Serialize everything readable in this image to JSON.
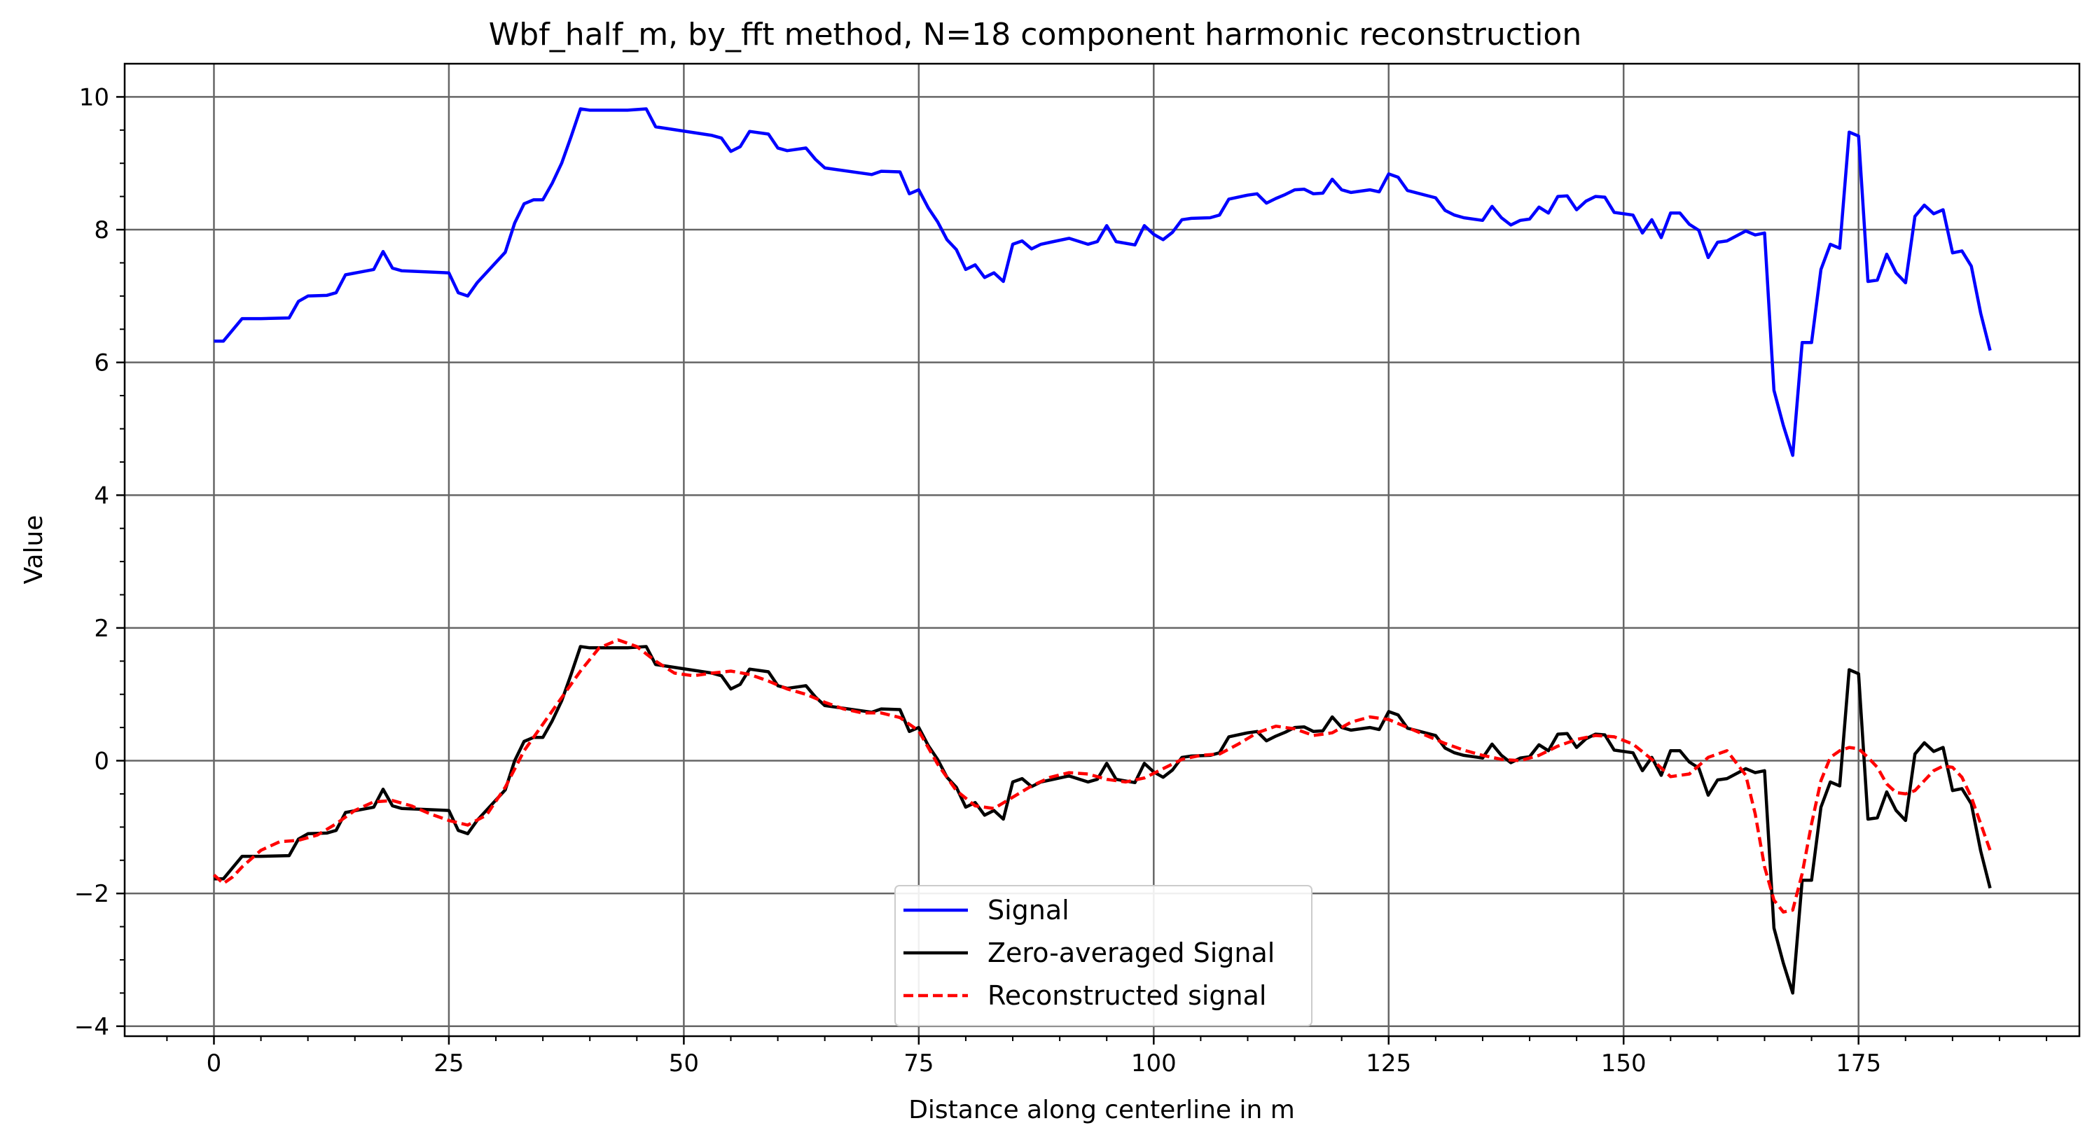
{
  "chart_data": {
    "type": "line",
    "title": "Wbf_half_m, by_fft method, N=18 component harmonic reconstruction",
    "xlabel": "Distance along centerline in m",
    "ylabel": "Value",
    "xlim": [
      -9.5,
      198.5
    ],
    "ylim": [
      -4.15,
      10.5
    ],
    "xticks": [
      0,
      25,
      50,
      75,
      100,
      125,
      150,
      175
    ],
    "yticks": [
      -4,
      -2,
      0,
      2,
      4,
      6,
      8,
      10
    ],
    "grid": true,
    "legend_position": "bottom-center",
    "series": [
      {
        "name": "Signal",
        "color": "#0000ff",
        "dash": "solid",
        "x": [
          0,
          1,
          3,
          5,
          8,
          9,
          10,
          12,
          13,
          14,
          17,
          18,
          19,
          20,
          25,
          26,
          27,
          28,
          31,
          32,
          33,
          34,
          35,
          36,
          37,
          38,
          39,
          40,
          42,
          44,
          46,
          47,
          53,
          54,
          55,
          56,
          57,
          59,
          60,
          61,
          63,
          64,
          65,
          70,
          71,
          73,
          74,
          75,
          76,
          77,
          78,
          79,
          80,
          81,
          82,
          83,
          84,
          85,
          86,
          87,
          88,
          89,
          91,
          93,
          94,
          95,
          96,
          98,
          99,
          100,
          101,
          102,
          103,
          104,
          106,
          107,
          108,
          110,
          111,
          112,
          113,
          114,
          115,
          116,
          117,
          118,
          119,
          120,
          121,
          123,
          124,
          125,
          126,
          127,
          130,
          131,
          132,
          133,
          135,
          136,
          137,
          138,
          139,
          140,
          141,
          142,
          143,
          144,
          145,
          146,
          147,
          148,
          149,
          151,
          152,
          153,
          154,
          155,
          156,
          157,
          158,
          159,
          160,
          161,
          163,
          164,
          165,
          166,
          167,
          168,
          169,
          170,
          171,
          172,
          173,
          174,
          175,
          176,
          177,
          178,
          179,
          180,
          181,
          182,
          183,
          184,
          185,
          186,
          187,
          188,
          189
        ],
        "y": [
          6.32,
          6.32,
          6.66,
          6.66,
          6.67,
          6.92,
          7.0,
          7.01,
          7.05,
          7.32,
          7.4,
          7.67,
          7.42,
          7.38,
          7.35,
          7.05,
          7.0,
          7.2,
          7.66,
          8.1,
          8.39,
          8.45,
          8.45,
          8.7,
          9.0,
          9.4,
          9.82,
          9.8,
          9.8,
          9.8,
          9.82,
          9.55,
          9.42,
          9.38,
          9.18,
          9.25,
          9.48,
          9.44,
          9.23,
          9.19,
          9.23,
          9.06,
          8.93,
          8.83,
          8.88,
          8.87,
          8.54,
          8.6,
          8.33,
          8.12,
          7.85,
          7.7,
          7.4,
          7.47,
          7.28,
          7.35,
          7.22,
          7.78,
          7.83,
          7.71,
          7.78,
          7.81,
          7.87,
          7.78,
          7.82,
          8.06,
          7.82,
          7.77,
          8.06,
          7.93,
          7.85,
          7.96,
          8.15,
          8.17,
          8.18,
          8.22,
          8.46,
          8.52,
          8.54,
          8.4,
          8.47,
          8.53,
          8.6,
          8.61,
          8.54,
          8.55,
          8.76,
          8.6,
          8.56,
          8.6,
          8.57,
          8.84,
          8.79,
          8.59,
          8.48,
          8.29,
          8.22,
          8.18,
          8.14,
          8.35,
          8.18,
          8.07,
          8.14,
          8.16,
          8.34,
          8.25,
          8.5,
          8.51,
          8.3,
          8.43,
          8.5,
          8.49,
          8.26,
          8.22,
          7.95,
          8.15,
          7.88,
          8.25,
          8.25,
          8.08,
          7.99,
          7.58,
          7.81,
          7.83,
          7.98,
          7.92,
          7.95,
          5.58,
          5.05,
          4.6,
          6.3,
          6.3,
          7.4,
          7.78,
          7.72,
          9.47,
          9.41,
          7.22,
          7.24,
          7.63,
          7.35,
          7.2,
          8.2,
          8.37,
          8.24,
          8.3,
          7.65,
          7.68,
          7.45,
          6.74,
          6.18
        ]
      },
      {
        "name": "Zero-averaged Signal",
        "color": "#000000",
        "dash": "solid",
        "x": [
          0,
          1,
          3,
          5,
          8,
          9,
          10,
          12,
          13,
          14,
          17,
          18,
          19,
          20,
          25,
          26,
          27,
          28,
          31,
          32,
          33,
          34,
          35,
          36,
          37,
          38,
          39,
          40,
          42,
          44,
          46,
          47,
          53,
          54,
          55,
          56,
          57,
          59,
          60,
          61,
          63,
          64,
          65,
          70,
          71,
          73,
          74,
          75,
          76,
          77,
          78,
          79,
          80,
          81,
          82,
          83,
          84,
          85,
          86,
          87,
          88,
          89,
          91,
          93,
          94,
          95,
          96,
          98,
          99,
          100,
          101,
          102,
          103,
          104,
          106,
          107,
          108,
          110,
          111,
          112,
          113,
          114,
          115,
          116,
          117,
          118,
          119,
          120,
          121,
          123,
          124,
          125,
          126,
          127,
          130,
          131,
          132,
          133,
          135,
          136,
          137,
          138,
          139,
          140,
          141,
          142,
          143,
          144,
          145,
          146,
          147,
          148,
          149,
          151,
          152,
          153,
          154,
          155,
          156,
          157,
          158,
          159,
          160,
          161,
          163,
          164,
          165,
          166,
          167,
          168,
          169,
          170,
          171,
          172,
          173,
          174,
          175,
          176,
          177,
          178,
          179,
          180,
          181,
          182,
          183,
          184,
          185,
          186,
          187,
          188,
          189
        ],
        "y": [
          -1.78,
          -1.78,
          -1.44,
          -1.44,
          -1.43,
          -1.18,
          -1.1,
          -1.09,
          -1.05,
          -0.78,
          -0.7,
          -0.43,
          -0.68,
          -0.72,
          -0.75,
          -1.05,
          -1.1,
          -0.9,
          -0.44,
          0.0,
          0.29,
          0.35,
          0.35,
          0.6,
          0.9,
          1.3,
          1.72,
          1.7,
          1.7,
          1.7,
          1.72,
          1.45,
          1.32,
          1.28,
          1.08,
          1.15,
          1.38,
          1.34,
          1.13,
          1.09,
          1.13,
          0.96,
          0.83,
          0.73,
          0.78,
          0.77,
          0.44,
          0.5,
          0.23,
          0.02,
          -0.25,
          -0.4,
          -0.7,
          -0.63,
          -0.82,
          -0.75,
          -0.88,
          -0.32,
          -0.27,
          -0.39,
          -0.32,
          -0.29,
          -0.23,
          -0.32,
          -0.28,
          -0.04,
          -0.28,
          -0.33,
          -0.04,
          -0.17,
          -0.25,
          -0.14,
          0.05,
          0.07,
          0.08,
          0.12,
          0.36,
          0.42,
          0.44,
          0.3,
          0.37,
          0.43,
          0.5,
          0.51,
          0.44,
          0.45,
          0.66,
          0.5,
          0.46,
          0.5,
          0.47,
          0.74,
          0.69,
          0.49,
          0.38,
          0.19,
          0.12,
          0.08,
          0.04,
          0.25,
          0.08,
          -0.03,
          0.04,
          0.06,
          0.24,
          0.15,
          0.4,
          0.41,
          0.2,
          0.33,
          0.4,
          0.39,
          0.16,
          0.12,
          -0.15,
          0.05,
          -0.22,
          0.15,
          0.15,
          -0.02,
          -0.11,
          -0.52,
          -0.29,
          -0.27,
          -0.12,
          -0.18,
          -0.15,
          -2.52,
          -3.05,
          -3.5,
          -1.8,
          -1.8,
          -0.7,
          -0.32,
          -0.38,
          1.37,
          1.31,
          -0.88,
          -0.86,
          -0.47,
          -0.75,
          -0.9,
          0.1,
          0.27,
          0.14,
          0.2,
          -0.45,
          -0.42,
          -0.65,
          -1.36,
          -1.92
        ]
      },
      {
        "name": "Reconstructed signal",
        "color": "#ff0000",
        "dash": "dashed",
        "x": [
          0,
          1,
          2,
          3,
          5,
          7,
          9,
          11,
          13,
          15,
          17,
          19,
          21,
          23,
          25,
          27,
          29,
          31,
          33,
          35,
          37,
          39,
          41,
          43,
          45,
          47,
          49,
          51,
          53,
          55,
          57,
          59,
          61,
          63,
          65,
          67,
          69,
          71,
          73,
          75,
          77,
          79,
          81,
          83,
          85,
          87,
          89,
          91,
          93,
          95,
          97,
          99,
          101,
          103,
          105,
          107,
          109,
          111,
          113,
          115,
          117,
          119,
          121,
          123,
          125,
          127,
          129,
          131,
          133,
          135,
          137,
          139,
          141,
          143,
          145,
          147,
          149,
          151,
          153,
          155,
          157,
          159,
          161,
          163,
          164,
          165,
          166,
          167,
          168,
          169,
          170,
          171,
          172,
          173,
          174,
          175,
          176,
          177,
          178,
          179,
          180,
          181,
          182,
          183,
          184,
          185,
          186,
          187,
          188,
          189
        ],
        "y": [
          -1.72,
          -1.85,
          -1.75,
          -1.6,
          -1.35,
          -1.22,
          -1.2,
          -1.12,
          -0.95,
          -0.75,
          -0.62,
          -0.6,
          -0.68,
          -0.8,
          -0.9,
          -0.97,
          -0.82,
          -0.4,
          0.15,
          0.55,
          0.95,
          1.35,
          1.7,
          1.82,
          1.72,
          1.5,
          1.32,
          1.28,
          1.32,
          1.35,
          1.3,
          1.2,
          1.08,
          1.0,
          0.88,
          0.78,
          0.72,
          0.72,
          0.65,
          0.45,
          -0.05,
          -0.45,
          -0.68,
          -0.72,
          -0.55,
          -0.38,
          -0.25,
          -0.18,
          -0.2,
          -0.28,
          -0.32,
          -0.26,
          -0.12,
          0.02,
          0.08,
          0.1,
          0.25,
          0.42,
          0.52,
          0.48,
          0.38,
          0.42,
          0.58,
          0.66,
          0.62,
          0.5,
          0.38,
          0.26,
          0.16,
          0.08,
          0.02,
          0.0,
          0.08,
          0.22,
          0.32,
          0.38,
          0.36,
          0.25,
          0.02,
          -0.24,
          -0.2,
          0.05,
          0.15,
          -0.22,
          -0.8,
          -1.6,
          -2.1,
          -2.28,
          -2.25,
          -1.7,
          -0.95,
          -0.3,
          0.05,
          0.15,
          0.2,
          0.18,
          0.05,
          -0.1,
          -0.35,
          -0.48,
          -0.5,
          -0.45,
          -0.3,
          -0.15,
          -0.08,
          -0.1,
          -0.25,
          -0.55,
          -0.95,
          -1.35
        ]
      }
    ]
  }
}
